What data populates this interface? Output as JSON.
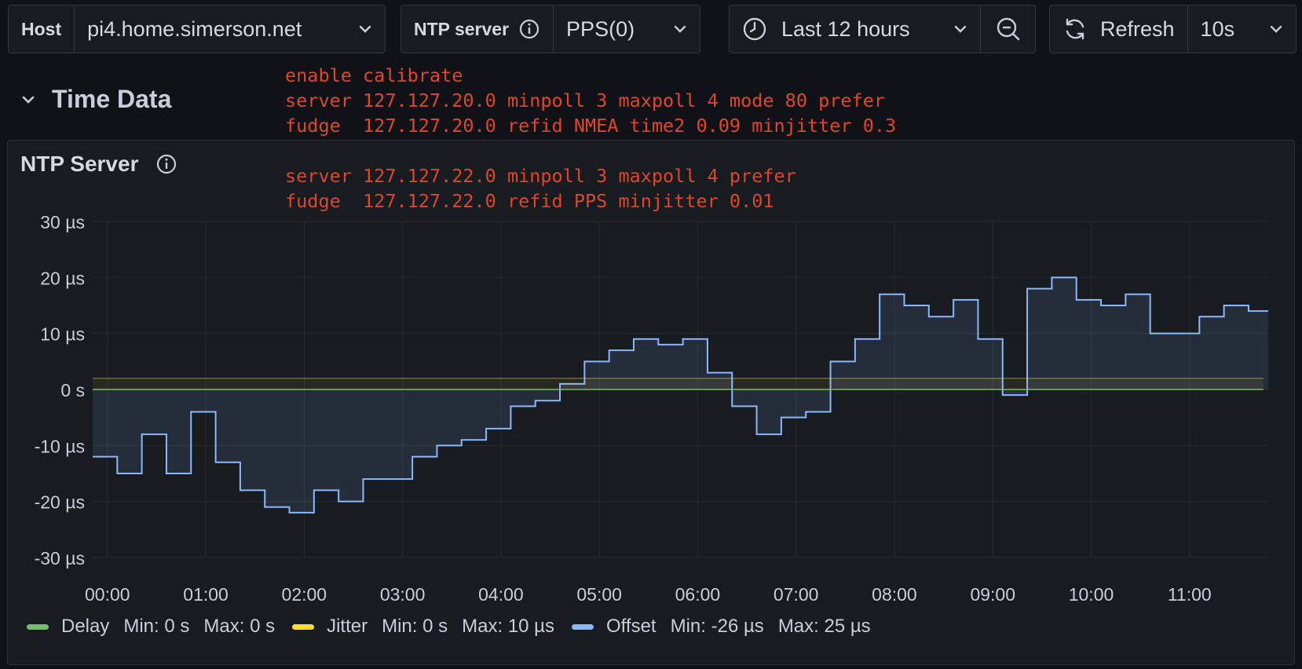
{
  "toolbar": {
    "host": {
      "label": "Host",
      "value": "pi4.home.simerson.net"
    },
    "ntp_server": {
      "label": "NTP server",
      "value": "PPS(0)"
    },
    "time_range": {
      "label": "Last 12 hours"
    },
    "refresh": {
      "label": "Refresh",
      "interval": "10s"
    }
  },
  "row": {
    "title": "Time Data"
  },
  "panel": {
    "title": "NTP Server",
    "note_lines": [
      "enable calibrate",
      "server 127.127.20.0 minpoll 3 maxpoll 4 mode 80 prefer",
      "fudge  127.127.20.0 refid NMEA time2 0.09 minjitter 0.3",
      "",
      "server 127.127.22.0 minpoll 3 maxpoll 4 prefer",
      "fudge  127.127.22.0 refid PPS minjitter 0.01"
    ]
  },
  "legend": [
    {
      "name": "Delay",
      "min": "Min: 0 s",
      "max": "Max: 0 s",
      "color": "#73bf69"
    },
    {
      "name": "Jitter",
      "min": "Min: 0 s",
      "max": "Max: 10 µs",
      "color": "#fade2a"
    },
    {
      "name": "Offset",
      "min": "Min: -26 µs",
      "max": "Max: 25 µs",
      "color": "#8ab8ff"
    }
  ],
  "chart_data": {
    "type": "line",
    "x_tick_labels": [
      "00:00",
      "01:00",
      "02:00",
      "03:00",
      "04:00",
      "05:00",
      "06:00",
      "07:00",
      "08:00",
      "09:00",
      "10:00",
      "11:00"
    ],
    "y_tick_labels": [
      "30 µs",
      "20 µs",
      "10 µs",
      "0 s",
      "-10 µs",
      "-20 µs",
      "-30 µs"
    ],
    "ylim": [
      -30,
      30
    ],
    "grid": true,
    "legend_position": "bottom-left",
    "series": [
      {
        "name": "Offset",
        "color": "#8ab8ff",
        "x": [
          0,
          0.25,
          0.5,
          0.75,
          1,
          1.25,
          1.5,
          1.75,
          2,
          2.25,
          2.5,
          2.75,
          3,
          3.25,
          3.5,
          3.75,
          4,
          4.25,
          4.5,
          4.75,
          5,
          5.25,
          5.5,
          5.75,
          6,
          6.25,
          6.5,
          6.75,
          7,
          7.25,
          7.5,
          7.75,
          8,
          8.25,
          8.5,
          8.75,
          9,
          9.25,
          9.5,
          9.75,
          10,
          10.25,
          10.5,
          10.75,
          11,
          11.25,
          11.5,
          11.75
        ],
        "values": [
          -12,
          -15,
          -8,
          -15,
          -4,
          -13,
          -18,
          -21,
          -22,
          -18,
          -20,
          -16,
          -16,
          -12,
          -10,
          -9,
          -7,
          -3,
          -2,
          1,
          5,
          7,
          9,
          8,
          9,
          3,
          -3,
          -8,
          -5,
          -4,
          5,
          9,
          17,
          15,
          13,
          16,
          9,
          -1,
          18,
          20,
          16,
          15,
          17,
          10,
          10,
          13,
          15,
          14
        ]
      },
      {
        "name": "Jitter",
        "color": "#fade2a",
        "x": [
          0,
          1,
          2,
          3,
          4,
          5,
          6,
          7,
          8,
          9,
          10,
          11,
          11.9
        ],
        "values": [
          2,
          2,
          2,
          2,
          2,
          2,
          2,
          2,
          2,
          2,
          2,
          2,
          2
        ]
      },
      {
        "name": "Delay",
        "color": "#73bf69",
        "x": [
          0,
          11.9
        ],
        "values": [
          0,
          0
        ]
      }
    ]
  }
}
